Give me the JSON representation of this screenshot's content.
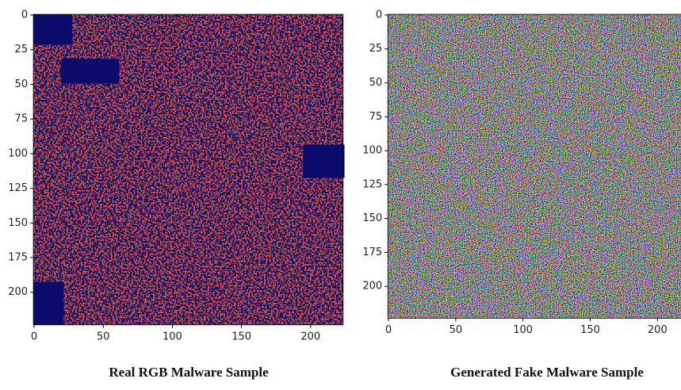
{
  "chart_data": [
    {
      "type": "image",
      "title": "Real RGB Malware Sample",
      "palette": "real",
      "xlim": [
        -0.5,
        223.5
      ],
      "ylim": [
        223.5,
        -0.5
      ],
      "xticks": [
        0,
        50,
        100,
        150,
        200
      ],
      "yticks": [
        0,
        25,
        50,
        75,
        100,
        125,
        150,
        175,
        200
      ]
    },
    {
      "type": "image",
      "title": "Generated Fake Malware Sample",
      "palette": "noise",
      "xlim": [
        -0.5,
        223.5
      ],
      "ylim": [
        223.5,
        -0.5
      ],
      "xticks": [
        0,
        50,
        100,
        150,
        200
      ],
      "yticks": [
        0,
        25,
        50,
        75,
        100,
        125,
        150,
        175,
        200
      ]
    }
  ]
}
